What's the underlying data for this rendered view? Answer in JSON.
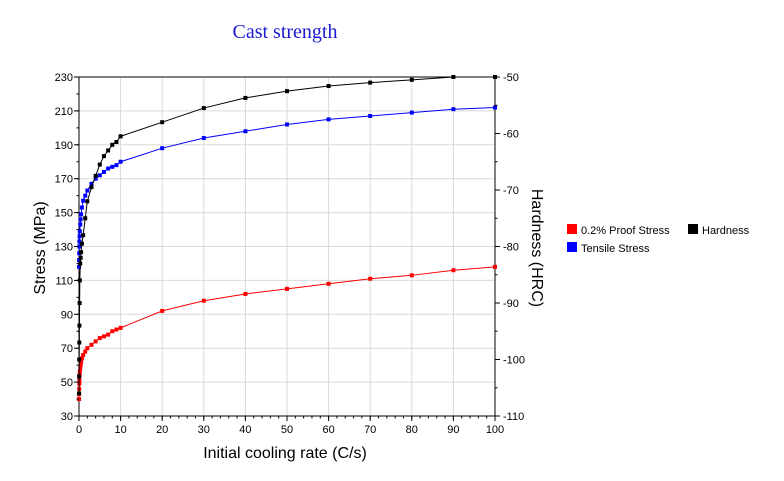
{
  "chart_data": {
    "type": "line",
    "title": "Cast strength",
    "xlabel": "Initial cooling rate (C/s)",
    "ylabel": "Stress (MPa)",
    "y2label": "Hardness (HRC)",
    "xlim": [
      0,
      100
    ],
    "ylim": [
      30,
      230
    ],
    "y2lim": [
      -110,
      -50
    ],
    "x_ticks": [
      "0",
      "10",
      "20",
      "30",
      "40",
      "50",
      "60",
      "70",
      "80",
      "90",
      "100"
    ],
    "y_ticks": [
      "30",
      "50",
      "70",
      "90",
      "110",
      "130",
      "150",
      "170",
      "190",
      "210",
      "230"
    ],
    "y2_ticks": [
      "-110",
      "-100",
      "-90",
      "-80",
      "-70",
      "-60",
      "-50"
    ],
    "grid": true,
    "legend_position": "right",
    "series": [
      {
        "name": "0.2% Proof Stress",
        "color": "#ff0000",
        "axis": "left",
        "x": [
          0.01,
          0.03,
          0.05,
          0.08,
          0.1,
          0.15,
          0.2,
          0.3,
          0.4,
          0.5,
          0.7,
          1,
          1.5,
          2,
          3,
          4,
          5,
          6,
          7,
          8,
          9,
          10,
          20,
          30,
          40,
          50,
          60,
          70,
          80,
          90,
          100
        ],
        "y": [
          40,
          43,
          46,
          49,
          51,
          54,
          56,
          58,
          60,
          62,
          64,
          66,
          68,
          70,
          72,
          74,
          76,
          77,
          78,
          80,
          81,
          82,
          92,
          98,
          102,
          105,
          108,
          111,
          113,
          116,
          118
        ]
      },
      {
        "name": "Tensile Stress",
        "color": "#0000ff",
        "axis": "left",
        "x": [
          0.01,
          0.03,
          0.05,
          0.08,
          0.1,
          0.15,
          0.2,
          0.3,
          0.4,
          0.5,
          0.7,
          1,
          1.5,
          2,
          3,
          4,
          5,
          6,
          7,
          8,
          9,
          10,
          20,
          30,
          40,
          50,
          60,
          70,
          80,
          90,
          100
        ],
        "y": [
          118,
          122,
          126,
          130,
          133,
          136,
          139,
          143,
          146,
          149,
          153,
          157,
          160,
          163,
          167,
          170,
          172,
          174,
          176,
          177,
          178,
          180,
          188,
          194,
          198,
          202,
          205,
          207,
          209,
          211,
          212
        ]
      },
      {
        "name": "Hardness",
        "color": "#000000",
        "axis": "right",
        "x": [
          0.01,
          0.03,
          0.05,
          0.08,
          0.1,
          0.15,
          0.2,
          0.3,
          0.4,
          0.5,
          0.7,
          1,
          1.5,
          2,
          3,
          4,
          5,
          6,
          7,
          8,
          9,
          10,
          20,
          30,
          40,
          50,
          60,
          70,
          80,
          90,
          100
        ],
        "y": [
          -106,
          -103,
          -100,
          -97,
          -94,
          -90,
          -86,
          -83,
          -82,
          -81,
          -79.5,
          -78,
          -75,
          -72,
          -69.5,
          -67.5,
          -65.5,
          -64,
          -63,
          -62,
          -61.5,
          -60.5,
          -58,
          -55.5,
          -53.7,
          -52.5,
          -51.6,
          -51,
          -50.5,
          -50,
          -49.5
        ]
      }
    ]
  }
}
